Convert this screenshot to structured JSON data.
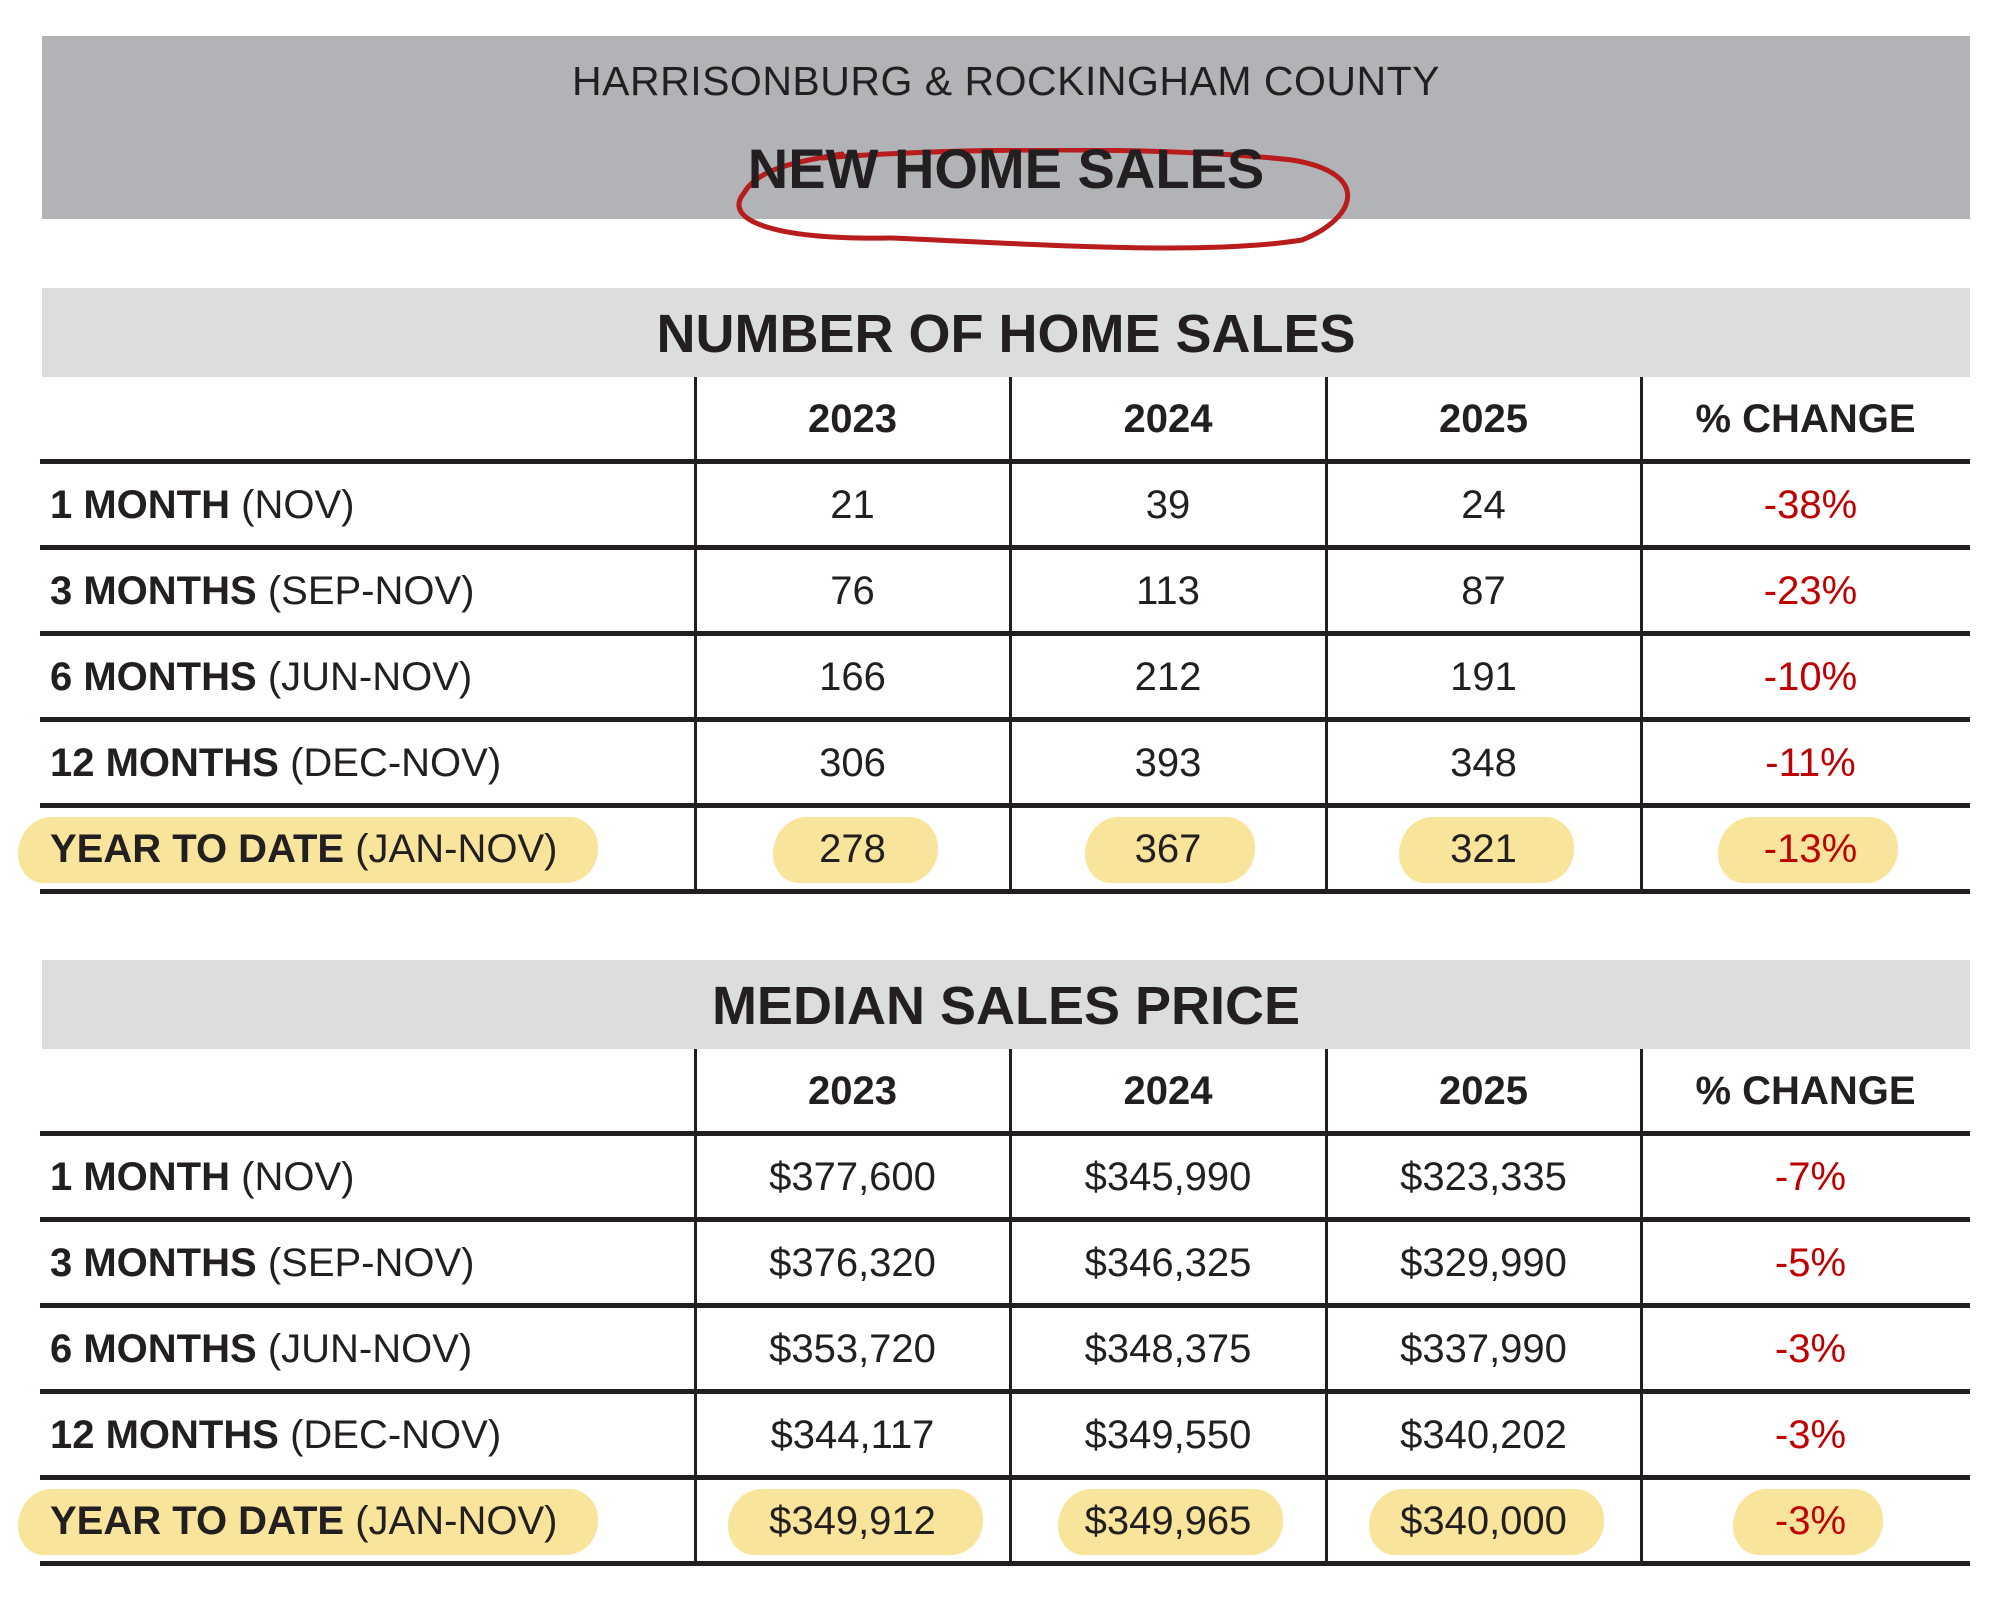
{
  "header": {
    "subtitle": "HARRISONBURG & ROCKINGHAM COUNTY",
    "title": "NEW HOME SALES",
    "annotation_color": "#b81c1c"
  },
  "colors": {
    "negative": "#c00000",
    "highlight": "#f8e59b",
    "banner": "#b2b3b6",
    "section": "#dcdddf"
  },
  "tables": [
    {
      "title": "NUMBER OF HOME SALES",
      "columns": [
        "2023",
        "2024",
        "2025",
        "% CHANGE"
      ],
      "rows": [
        {
          "label_bold": "1 MONTH",
          "label_normal": "(NOV)",
          "values": [
            "21",
            "39",
            "24"
          ],
          "change": "-38%",
          "highlighted": false
        },
        {
          "label_bold": "3 MONTHS",
          "label_normal": "(SEP-NOV)",
          "values": [
            "76",
            "113",
            "87"
          ],
          "change": "-23%",
          "highlighted": false
        },
        {
          "label_bold": "6 MONTHS",
          "label_normal": "(JUN-NOV)",
          "values": [
            "166",
            "212",
            "191"
          ],
          "change": "-10%",
          "highlighted": false
        },
        {
          "label_bold": "12 MONTHS",
          "label_normal": "(DEC-NOV)",
          "values": [
            "306",
            "393",
            "348"
          ],
          "change": "-11%",
          "highlighted": false
        },
        {
          "label_bold": "YEAR TO DATE",
          "label_normal": "(JAN-NOV)",
          "values": [
            "278",
            "367",
            "321"
          ],
          "change": "-13%",
          "highlighted": true
        }
      ]
    },
    {
      "title": "MEDIAN SALES PRICE",
      "columns": [
        "2023",
        "2024",
        "2025",
        "% CHANGE"
      ],
      "rows": [
        {
          "label_bold": "1 MONTH",
          "label_normal": "(NOV)",
          "values": [
            "$377,600",
            "$345,990",
            "$323,335"
          ],
          "change": "-7%",
          "highlighted": false
        },
        {
          "label_bold": "3 MONTHS",
          "label_normal": "(SEP-NOV)",
          "values": [
            "$376,320",
            "$346,325",
            "$329,990"
          ],
          "change": "-5%",
          "highlighted": false
        },
        {
          "label_bold": "6 MONTHS",
          "label_normal": "(JUN-NOV)",
          "values": [
            "$353,720",
            "$348,375",
            "$337,990"
          ],
          "change": "-3%",
          "highlighted": false
        },
        {
          "label_bold": "12 MONTHS",
          "label_normal": "(DEC-NOV)",
          "values": [
            "$344,117",
            "$349,550",
            "$340,202"
          ],
          "change": "-3%",
          "highlighted": false
        },
        {
          "label_bold": "YEAR TO DATE",
          "label_normal": "(JAN-NOV)",
          "values": [
            "$349,912",
            "$349,965",
            "$340,000"
          ],
          "change": "-3%",
          "highlighted": true
        }
      ]
    }
  ]
}
